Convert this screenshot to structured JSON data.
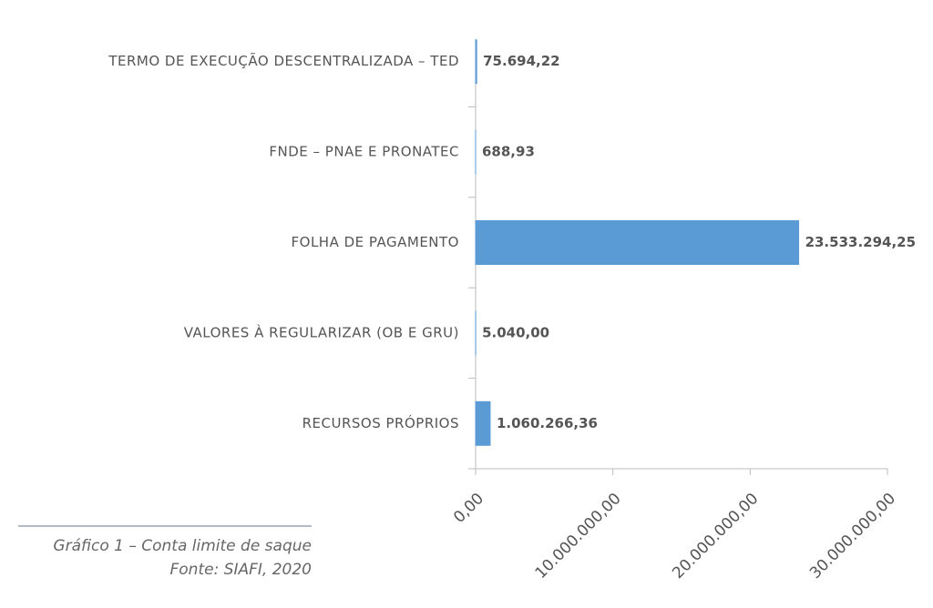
{
  "chart_data": {
    "type": "bar",
    "orientation": "horizontal",
    "categories": [
      "TERMO DE EXECUÇÃO DESCENTRALIZADA – TED",
      "FNDE – PNAE E PRONATEC",
      "FOLHA DE PAGAMENTO",
      "VALORES À REGULARIZAR (OB E GRU)",
      "RECURSOS PRÓPRIOS"
    ],
    "values": [
      75694.22,
      688.93,
      23533294.25,
      5040.0,
      1060266.36
    ],
    "value_labels": [
      "75.694,22",
      "688,93",
      "23.533.294,25",
      "5.040,00",
      "1.060.266,36"
    ],
    "color": "#5b9bd5",
    "xlim": [
      0,
      30000000
    ],
    "xticks": [
      {
        "value": 0,
        "label": "0,00"
      },
      {
        "value": 10000000,
        "label": "10.000.000,00"
      },
      {
        "value": 20000000,
        "label": "20.000.000,00"
      },
      {
        "value": 30000000,
        "label": "30.000.000,00"
      }
    ],
    "caption": "Gráfico 1 – Conta limite de saque",
    "source": "Fonte: SIAFI, 2020"
  }
}
